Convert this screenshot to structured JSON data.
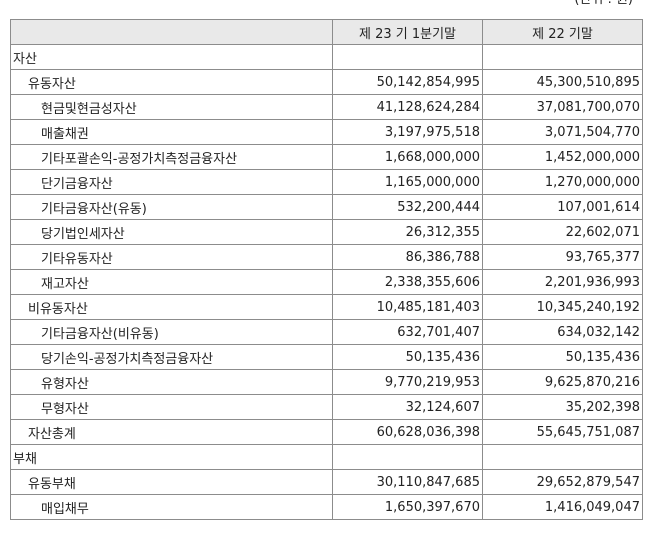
{
  "unit_note": "(단위 : 원)",
  "header": {
    "blank": "",
    "current_period": "제 23 기 1분기말",
    "prior_period": "제 22 기말"
  },
  "rows": [
    {
      "label": "자산",
      "level": 0,
      "current": "",
      "prior": ""
    },
    {
      "label": "유동자산",
      "level": 1,
      "current": "50,142,854,995",
      "prior": "45,300,510,895"
    },
    {
      "label": "현금및현금성자산",
      "level": 2,
      "current": "41,128,624,284",
      "prior": "37,081,700,070"
    },
    {
      "label": "매출채권",
      "level": 2,
      "current": "3,197,975,518",
      "prior": "3,071,504,770"
    },
    {
      "label": "기타포괄손익-공정가치측정금융자산",
      "level": 2,
      "current": "1,668,000,000",
      "prior": "1,452,000,000"
    },
    {
      "label": "단기금융자산",
      "level": 2,
      "current": "1,165,000,000",
      "prior": "1,270,000,000"
    },
    {
      "label": "기타금융자산(유동)",
      "level": 2,
      "current": "532,200,444",
      "prior": "107,001,614"
    },
    {
      "label": "당기법인세자산",
      "level": 2,
      "current": "26,312,355",
      "prior": "22,602,071"
    },
    {
      "label": "기타유동자산",
      "level": 2,
      "current": "86,386,788",
      "prior": "93,765,377"
    },
    {
      "label": "재고자산",
      "level": 2,
      "current": "2,338,355,606",
      "prior": "2,201,936,993"
    },
    {
      "label": "비유동자산",
      "level": 1,
      "current": "10,485,181,403",
      "prior": "10,345,240,192"
    },
    {
      "label": "기타금융자산(비유동)",
      "level": 2,
      "current": "632,701,407",
      "prior": "634,032,142"
    },
    {
      "label": "당기손익-공정가치측정금융자산",
      "level": 2,
      "current": "50,135,436",
      "prior": "50,135,436"
    },
    {
      "label": "유형자산",
      "level": 2,
      "current": "9,770,219,953",
      "prior": "9,625,870,216"
    },
    {
      "label": "무형자산",
      "level": 2,
      "current": "32,124,607",
      "prior": "35,202,398"
    },
    {
      "label": "자산총계",
      "level": 1,
      "current": "60,628,036,398",
      "prior": "55,645,751,087"
    },
    {
      "label": "부채",
      "level": 0,
      "current": "",
      "prior": ""
    },
    {
      "label": "유동부채",
      "level": 1,
      "current": "30,110,847,685",
      "prior": "29,652,879,547"
    },
    {
      "label": "매입채무",
      "level": 2,
      "current": "1,650,397,670",
      "prior": "1,416,049,047"
    }
  ]
}
